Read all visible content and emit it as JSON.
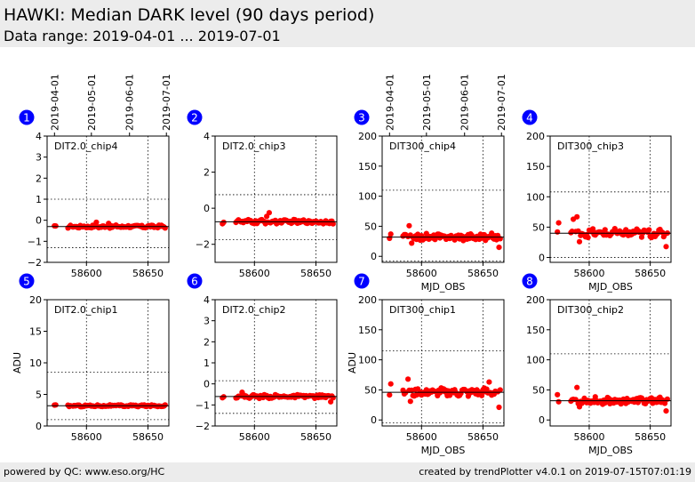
{
  "header": {
    "title": "HAWKI: Median DARK level (90 days period)",
    "subtitle": "Data range: 2019-04-01 ... 2019-07-01"
  },
  "footer": {
    "left": "powered by QC: www.eso.org/HC",
    "right": "created by trendPlotter v4.0.1 on 2019-07-15T07:01:19"
  },
  "colors": {
    "points": "#ff0000",
    "badge": "#0000ff",
    "median": "#000000"
  },
  "date_ticks": [
    "2019-04-01",
    "2019-05-01",
    "2019-06-01",
    "2019-07-01"
  ],
  "chart_data": [
    {
      "type": "scatter",
      "index": "1",
      "label": "DIT2.0_chip4",
      "ylim": [
        -2,
        4
      ],
      "yticks": [
        -2,
        -1,
        0,
        1,
        2,
        3,
        4
      ],
      "xlim": [
        58568,
        58667
      ],
      "xticks": [
        58600,
        58650
      ],
      "xlabel": "",
      "ylabel": "",
      "date_axis": true,
      "median": -0.3,
      "dotted_levels": [
        -1.3,
        1.0
      ],
      "noise": 0.06,
      "spikes": [
        [
          58608,
          -0.1
        ],
        [
          58618,
          -0.15
        ]
      ],
      "x": [
        58574,
        58575,
        58585,
        58586,
        58587,
        58589,
        58590,
        58591,
        58592,
        58593,
        58594,
        58595,
        58596,
        58597,
        58598,
        58599,
        58600,
        58601,
        58602,
        58603,
        58604,
        58605,
        58606,
        58607,
        58608,
        58609,
        58610,
        58611,
        58612,
        58613,
        58614,
        58615,
        58616,
        58617,
        58618,
        58619,
        58620,
        58621,
        58622,
        58623,
        58624,
        58625,
        58626,
        58627,
        58628,
        58629,
        58630,
        58631,
        58632,
        58633,
        58634,
        58635,
        58636,
        58637,
        58638,
        58639,
        58640,
        58641,
        58642,
        58643,
        58644,
        58645,
        58646,
        58647,
        58648,
        58649,
        58650,
        58651,
        58652,
        58653,
        58654,
        58655,
        58656,
        58657,
        58658,
        58659,
        58660,
        58661,
        58662,
        58663,
        58664
      ]
    },
    {
      "type": "scatter",
      "index": "2",
      "label": "DIT2.0_chip3",
      "ylim": [
        -3,
        4
      ],
      "yticks": [
        -2,
        0,
        2,
        4
      ],
      "xlim": [
        58568,
        58667
      ],
      "xticks": [
        58600,
        58650
      ],
      "xlabel": "",
      "ylabel": "",
      "date_axis": false,
      "median": -0.75,
      "dotted_levels": [
        -1.75,
        0.75
      ],
      "noise": 0.1,
      "spikes": [
        [
          58612,
          -0.25
        ],
        [
          58610,
          -0.45
        ]
      ],
      "x": [
        58574,
        58575,
        58585,
        58586,
        58587,
        58589,
        58590,
        58591,
        58592,
        58593,
        58594,
        58595,
        58596,
        58597,
        58598,
        58599,
        58600,
        58601,
        58602,
        58603,
        58604,
        58605,
        58606,
        58607,
        58608,
        58609,
        58610,
        58611,
        58612,
        58613,
        58614,
        58615,
        58616,
        58617,
        58618,
        58619,
        58620,
        58621,
        58622,
        58623,
        58624,
        58625,
        58626,
        58627,
        58628,
        58629,
        58630,
        58631,
        58632,
        58633,
        58634,
        58635,
        58636,
        58637,
        58638,
        58639,
        58640,
        58641,
        58642,
        58643,
        58644,
        58645,
        58646,
        58647,
        58648,
        58649,
        58650,
        58651,
        58652,
        58653,
        58654,
        58655,
        58656,
        58657,
        58658,
        58659,
        58660,
        58661,
        58662,
        58663,
        58664
      ]
    },
    {
      "type": "scatter",
      "index": "3",
      "label": "DIT300_chip4",
      "ylim": [
        -10,
        200
      ],
      "yticks": [
        0,
        50,
        100,
        150,
        200
      ],
      "xlim": [
        58568,
        58667
      ],
      "xticks": [
        58600,
        58650
      ],
      "xlabel": "MJD_OBS",
      "ylabel": "",
      "date_axis": true,
      "median": 32,
      "dotted_levels": [
        -8,
        110
      ],
      "noise": 5,
      "spikes": [
        [
          58590,
          51
        ],
        [
          58576,
          41
        ],
        [
          58592,
          22
        ],
        [
          58663,
          15
        ]
      ],
      "x": [
        58574,
        58575,
        58585,
        58586,
        58587,
        58589,
        58590,
        58591,
        58592,
        58593,
        58594,
        58595,
        58596,
        58597,
        58598,
        58599,
        58600,
        58601,
        58602,
        58603,
        58604,
        58605,
        58606,
        58607,
        58608,
        58609,
        58610,
        58611,
        58612,
        58613,
        58614,
        58615,
        58616,
        58617,
        58618,
        58619,
        58620,
        58621,
        58622,
        58623,
        58624,
        58625,
        58626,
        58627,
        58628,
        58629,
        58630,
        58631,
        58632,
        58633,
        58634,
        58635,
        58636,
        58637,
        58638,
        58639,
        58640,
        58641,
        58642,
        58643,
        58644,
        58645,
        58646,
        58647,
        58648,
        58649,
        58650,
        58651,
        58652,
        58653,
        58654,
        58655,
        58656,
        58657,
        58658,
        58659,
        58660,
        58661,
        58662,
        58663,
        58664
      ]
    },
    {
      "type": "scatter",
      "index": "4",
      "label": "DIT300_chip3",
      "ylim": [
        -8,
        200
      ],
      "yticks": [
        0,
        50,
        100,
        150,
        200
      ],
      "xlim": [
        58568,
        58667
      ],
      "xticks": [
        58600,
        58650
      ],
      "xlabel": "MJD_OBS",
      "ylabel": "",
      "date_axis": false,
      "median": 40,
      "dotted_levels": [
        0,
        108
      ],
      "noise": 6,
      "spikes": [
        [
          58590,
          67
        ],
        [
          58587,
          63
        ],
        [
          58575,
          57
        ],
        [
          58592,
          26
        ],
        [
          58663,
          18
        ]
      ],
      "x": [
        58574,
        58575,
        58585,
        58586,
        58587,
        58589,
        58590,
        58591,
        58592,
        58593,
        58594,
        58595,
        58596,
        58597,
        58598,
        58599,
        58600,
        58601,
        58602,
        58603,
        58604,
        58605,
        58606,
        58607,
        58608,
        58609,
        58610,
        58611,
        58612,
        58613,
        58614,
        58615,
        58616,
        58617,
        58618,
        58619,
        58620,
        58621,
        58622,
        58623,
        58624,
        58625,
        58626,
        58627,
        58628,
        58629,
        58630,
        58631,
        58632,
        58633,
        58634,
        58635,
        58636,
        58637,
        58638,
        58639,
        58640,
        58641,
        58642,
        58643,
        58644,
        58645,
        58646,
        58647,
        58648,
        58649,
        58650,
        58651,
        58652,
        58653,
        58654,
        58655,
        58656,
        58657,
        58658,
        58659,
        58660,
        58661,
        58662,
        58663,
        58664
      ]
    },
    {
      "type": "scatter",
      "index": "5",
      "label": "DIT2.0_chip1",
      "ylim": [
        0,
        20
      ],
      "yticks": [
        0,
        5,
        10,
        15,
        20
      ],
      "xlim": [
        58568,
        58667
      ],
      "xticks": [
        58600,
        58650
      ],
      "xlabel": "",
      "ylabel": "ADU",
      "date_axis": false,
      "median": 3.2,
      "dotted_levels": [
        1.0,
        8.5
      ],
      "noise": 0.12,
      "spikes": [],
      "x": [
        58574,
        58575,
        58585,
        58586,
        58587,
        58589,
        58590,
        58591,
        58592,
        58593,
        58594,
        58595,
        58596,
        58597,
        58598,
        58599,
        58600,
        58601,
        58602,
        58603,
        58604,
        58605,
        58606,
        58607,
        58608,
        58609,
        58610,
        58611,
        58612,
        58613,
        58614,
        58615,
        58616,
        58617,
        58618,
        58619,
        58620,
        58621,
        58622,
        58623,
        58624,
        58625,
        58626,
        58627,
        58628,
        58629,
        58630,
        58631,
        58632,
        58633,
        58634,
        58635,
        58636,
        58637,
        58638,
        58639,
        58640,
        58641,
        58642,
        58643,
        58644,
        58645,
        58646,
        58647,
        58648,
        58649,
        58650,
        58651,
        58652,
        58653,
        58654,
        58655,
        58656,
        58657,
        58658,
        58659,
        58660,
        58661,
        58662,
        58663,
        58664
      ]
    },
    {
      "type": "scatter",
      "index": "6",
      "label": "DIT2.0_chip2",
      "ylim": [
        -2,
        4
      ],
      "yticks": [
        -2,
        -1,
        0,
        1,
        2,
        3,
        4
      ],
      "xlim": [
        58568,
        58667
      ],
      "xticks": [
        58600,
        58650
      ],
      "xlabel": "",
      "ylabel": "",
      "date_axis": false,
      "median": -0.6,
      "dotted_levels": [
        -1.4,
        0.15
      ],
      "noise": 0.07,
      "spikes": [
        [
          58590,
          -0.4
        ],
        [
          58662,
          -0.85
        ]
      ],
      "x": [
        58574,
        58575,
        58585,
        58586,
        58587,
        58589,
        58590,
        58591,
        58592,
        58593,
        58594,
        58595,
        58596,
        58597,
        58598,
        58599,
        58600,
        58601,
        58602,
        58603,
        58604,
        58605,
        58606,
        58607,
        58608,
        58609,
        58610,
        58611,
        58612,
        58613,
        58614,
        58615,
        58616,
        58617,
        58618,
        58619,
        58620,
        58621,
        58622,
        58623,
        58624,
        58625,
        58626,
        58627,
        58628,
        58629,
        58630,
        58631,
        58632,
        58633,
        58634,
        58635,
        58636,
        58637,
        58638,
        58639,
        58640,
        58641,
        58642,
        58643,
        58644,
        58645,
        58646,
        58647,
        58648,
        58649,
        58650,
        58651,
        58652,
        58653,
        58654,
        58655,
        58656,
        58657,
        58658,
        58659,
        58660,
        58661,
        58662,
        58663,
        58664
      ]
    },
    {
      "type": "scatter",
      "index": "7",
      "label": "DIT300_chip1",
      "ylim": [
        -10,
        200
      ],
      "yticks": [
        0,
        50,
        100,
        150,
        200
      ],
      "xlim": [
        58568,
        58667
      ],
      "xticks": [
        58600,
        58650
      ],
      "xlabel": "MJD_OBS",
      "ylabel": "ADU",
      "date_axis": false,
      "median": 46,
      "dotted_levels": [
        -5,
        115
      ],
      "noise": 6,
      "spikes": [
        [
          58589,
          68
        ],
        [
          58575,
          60
        ],
        [
          58655,
          63
        ],
        [
          58591,
          31
        ],
        [
          58663,
          21
        ]
      ],
      "x": [
        58574,
        58575,
        58585,
        58586,
        58587,
        58589,
        58590,
        58591,
        58592,
        58593,
        58594,
        58595,
        58596,
        58597,
        58598,
        58599,
        58600,
        58601,
        58602,
        58603,
        58604,
        58605,
        58606,
        58607,
        58608,
        58609,
        58610,
        58611,
        58612,
        58613,
        58614,
        58615,
        58616,
        58617,
        58618,
        58619,
        58620,
        58621,
        58622,
        58623,
        58624,
        58625,
        58626,
        58627,
        58628,
        58629,
        58630,
        58631,
        58632,
        58633,
        58634,
        58635,
        58636,
        58637,
        58638,
        58639,
        58640,
        58641,
        58642,
        58643,
        58644,
        58645,
        58646,
        58647,
        58648,
        58649,
        58650,
        58651,
        58652,
        58653,
        58654,
        58655,
        58656,
        58657,
        58658,
        58659,
        58660,
        58661,
        58662,
        58663,
        58664
      ]
    },
    {
      "type": "scatter",
      "index": "8",
      "label": "DIT300_chip2",
      "ylim": [
        -10,
        200
      ],
      "yticks": [
        0,
        50,
        100,
        150,
        200
      ],
      "xlim": [
        58568,
        58667
      ],
      "xticks": [
        58600,
        58650
      ],
      "xlabel": "MJD_OBS",
      "ylabel": "",
      "date_axis": false,
      "median": 32,
      "dotted_levels": [
        -10,
        110
      ],
      "noise": 5,
      "spikes": [
        [
          58590,
          54
        ],
        [
          58574,
          42
        ],
        [
          58592,
          22
        ],
        [
          58663,
          15
        ]
      ],
      "x": [
        58574,
        58575,
        58585,
        58586,
        58587,
        58589,
        58590,
        58591,
        58592,
        58593,
        58594,
        58595,
        58596,
        58597,
        58598,
        58599,
        58600,
        58601,
        58602,
        58603,
        58604,
        58605,
        58606,
        58607,
        58608,
        58609,
        58610,
        58611,
        58612,
        58613,
        58614,
        58615,
        58616,
        58617,
        58618,
        58619,
        58620,
        58621,
        58622,
        58623,
        58624,
        58625,
        58626,
        58627,
        58628,
        58629,
        58630,
        58631,
        58632,
        58633,
        58634,
        58635,
        58636,
        58637,
        58638,
        58639,
        58640,
        58641,
        58642,
        58643,
        58644,
        58645,
        58646,
        58647,
        58648,
        58649,
        58650,
        58651,
        58652,
        58653,
        58654,
        58655,
        58656,
        58657,
        58658,
        58659,
        58660,
        58661,
        58662,
        58663,
        58664
      ]
    }
  ]
}
